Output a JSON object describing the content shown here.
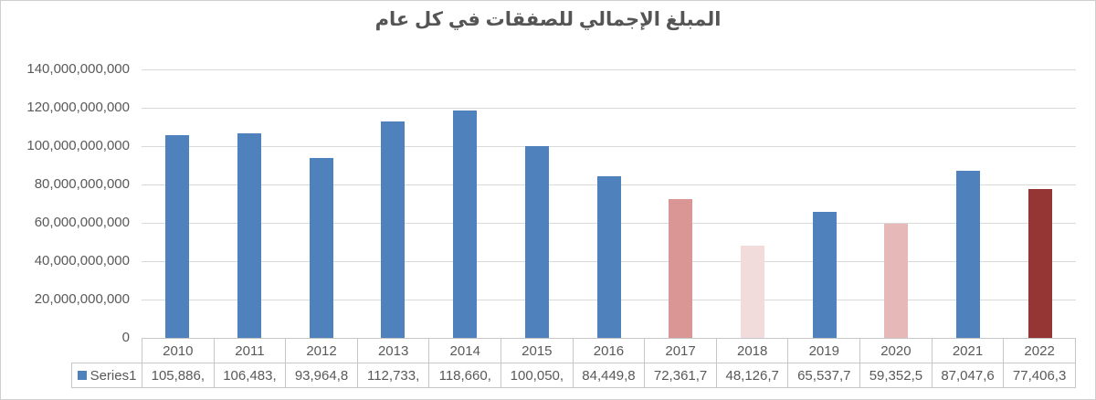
{
  "window": {
    "background": "#FFFFFF",
    "border_color": "#CFCFCF"
  },
  "chart_data": {
    "type": "bar",
    "title": "المبلغ الإجمالي للصفقات في كل عام",
    "categories": [
      "2010",
      "2011",
      "2012",
      "2013",
      "2014",
      "2015",
      "2016",
      "2017",
      "2018",
      "2019",
      "2020",
      "2021",
      "2022"
    ],
    "series": [
      {
        "name": "Series1",
        "values": [
          105886000000,
          106483000000,
          93964800000,
          112733000000,
          118660000000,
          100050000000,
          84449800000,
          72361700000,
          48126700000,
          65537700000,
          59352500000,
          87047600000,
          77406300000
        ]
      }
    ],
    "data_table_display_values": [
      "105,886,",
      "106,483,",
      "93,964,8",
      "112,733,",
      "118,660,",
      "100,050,",
      "84,449,8",
      "72,361,7",
      "48,126,7",
      "65,537,7",
      "59,352,5",
      "87,047,6",
      "77,406,3"
    ],
    "bar_colors": [
      "#4F81BD",
      "#4F81BD",
      "#4F81BD",
      "#4F81BD",
      "#4F81BD",
      "#4F81BD",
      "#4F81BD",
      "#D99694",
      "#F2DCDB",
      "#4F81BD",
      "#E6B9B8",
      "#4F81BD",
      "#963634"
    ],
    "ylim": [
      0,
      140000000000
    ],
    "y_tick_labels": [
      "140,000,000,000",
      "120,000,000,000",
      "100,000,000,000",
      "80,000,000,000",
      "60,000,000,000",
      "40,000,000,000",
      "20,000,000,000",
      "0"
    ],
    "grid": true,
    "xlabel": "",
    "ylabel": "",
    "legend": {
      "label": "Series1",
      "marker_color": "#4F81BD",
      "position": "data-table-left"
    },
    "colors": {
      "text": "#595959",
      "gridline": "#D9D9D9",
      "table_border": "#C6C6C6",
      "title_text": "#555555",
      "default_bar": "#4F81BD"
    }
  }
}
